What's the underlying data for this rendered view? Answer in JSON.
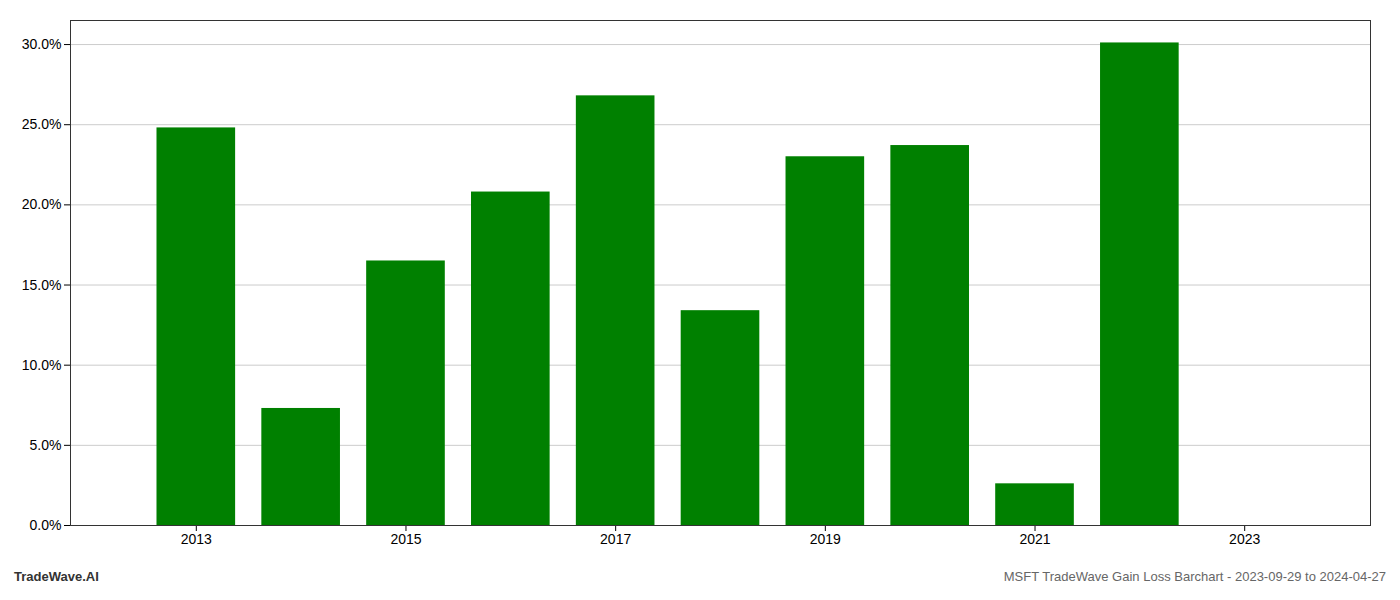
{
  "chart_data": {
    "type": "bar",
    "x": [
      2013,
      2014,
      2015,
      2016,
      2017,
      2018,
      2019,
      2020,
      2021,
      2022
    ],
    "values": [
      0.248,
      0.073,
      0.165,
      0.208,
      0.268,
      0.134,
      0.23,
      0.237,
      0.026,
      0.301
    ],
    "color": "#008000",
    "xlim": [
      2011.8,
      2024.2
    ],
    "xticks": [
      2013,
      2015,
      2017,
      2019,
      2021,
      2023
    ],
    "ylim": [
      0,
      0.315
    ],
    "yticks": [
      {
        "value": 0.0,
        "label": "0.0%"
      },
      {
        "value": 0.05,
        "label": "5.0%"
      },
      {
        "value": 0.1,
        "label": "10.0%"
      },
      {
        "value": 0.15,
        "label": "15.0%"
      },
      {
        "value": 0.2,
        "label": "20.0%"
      },
      {
        "value": 0.25,
        "label": "25.0%"
      },
      {
        "value": 0.3,
        "label": "30.0%"
      }
    ],
    "grid": true,
    "annotations": [
      "TradeWave.AI",
      "MSFT TradeWave Gain Loss Barchart - 2023-09-29 to 2024-04-27"
    ]
  }
}
